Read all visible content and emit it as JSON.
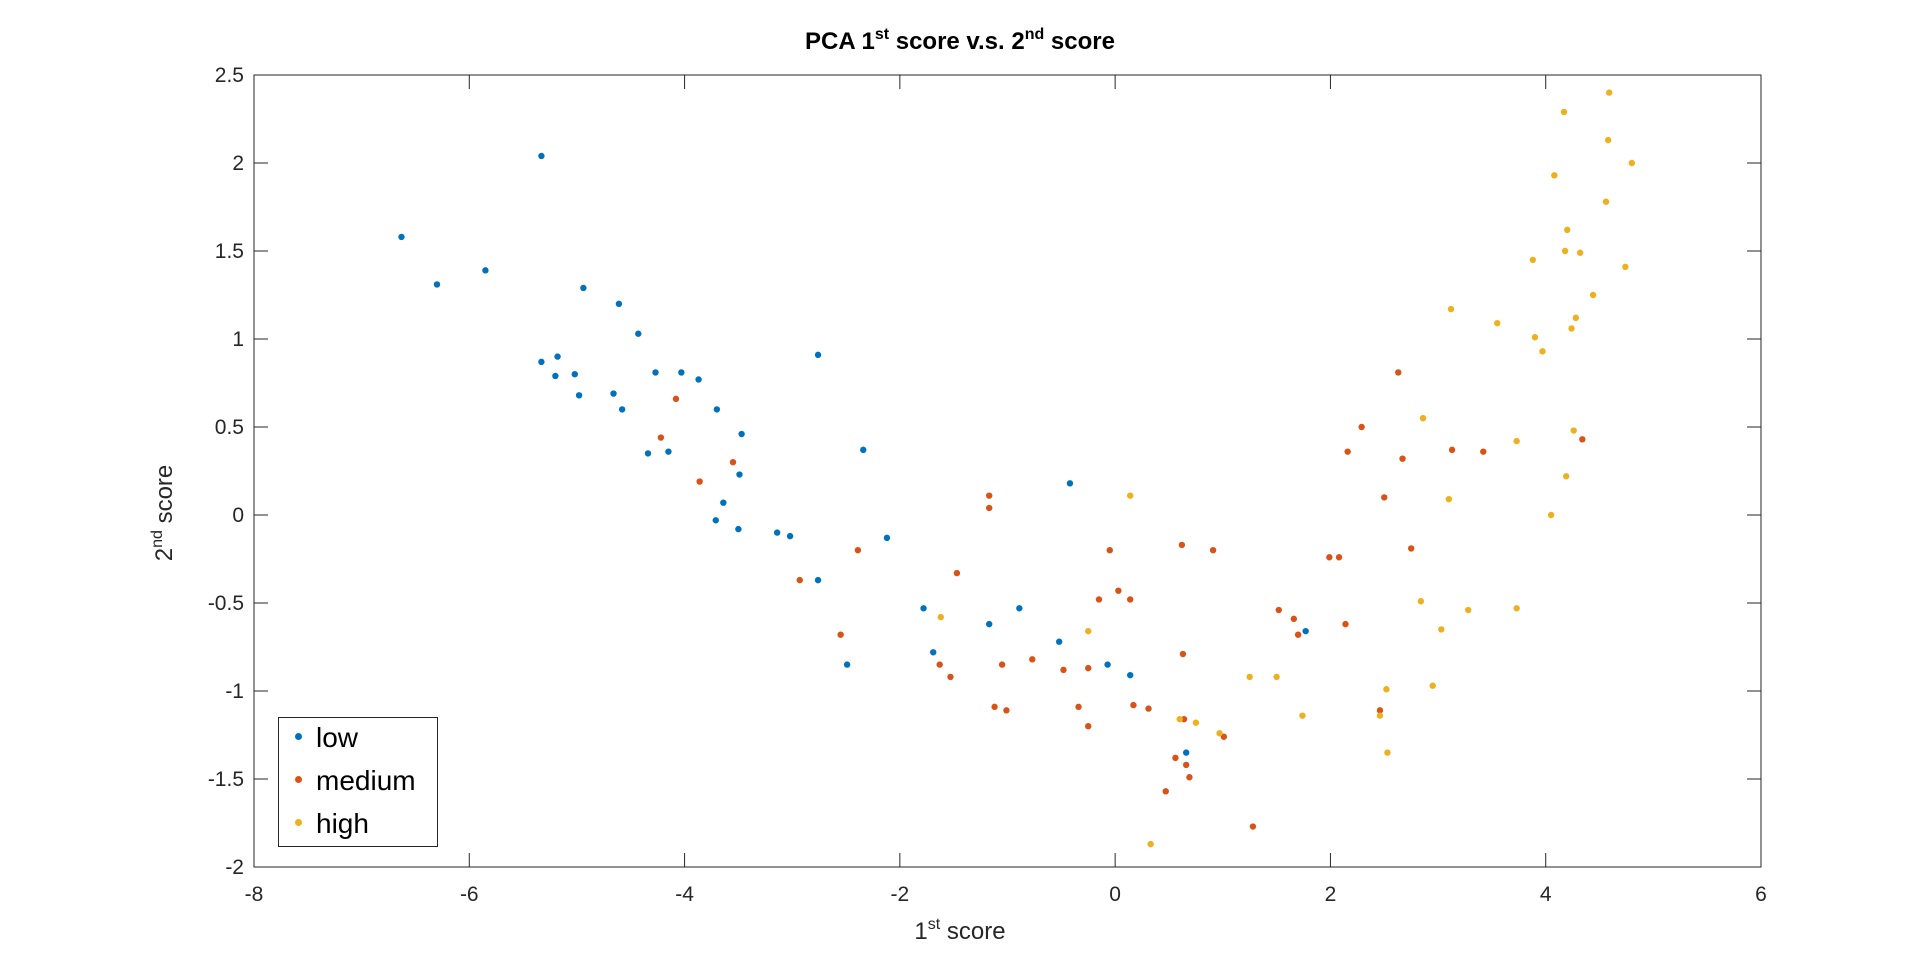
{
  "chart_data": {
    "type": "scatter",
    "title_main": "PCA 1",
    "title_sup1": "st",
    "title_mid": " score v.s. 2",
    "title_sup2": "nd",
    "title_end": " score",
    "xlabel_sup": "st",
    "xlabel_text": " score",
    "xlabel_prefix": "1",
    "ylabel_prefix": "2",
    "ylabel_sup": "nd",
    "ylabel_text": " score",
    "xlim": [
      -8,
      6
    ],
    "ylim": [
      -2,
      2.5
    ],
    "xticks": [
      -8,
      -6,
      -4,
      -2,
      0,
      2,
      4,
      6
    ],
    "yticks": [
      -2,
      -1.5,
      -1,
      -0.5,
      0,
      0.5,
      1,
      1.5,
      2,
      2.5
    ],
    "grid": false,
    "legend_position": "bottom-left",
    "series": [
      {
        "name": "low",
        "color": "#0072BD",
        "points": [
          [
            -6.63,
            1.58
          ],
          [
            -6.3,
            1.31
          ],
          [
            -5.85,
            1.39
          ],
          [
            -5.33,
            2.04
          ],
          [
            -5.33,
            0.87
          ],
          [
            -5.2,
            0.79
          ],
          [
            -5.18,
            0.9
          ],
          [
            -5.02,
            0.8
          ],
          [
            -4.98,
            0.68
          ],
          [
            -4.94,
            1.29
          ],
          [
            -4.66,
            0.69
          ],
          [
            -4.61,
            1.2
          ],
          [
            -4.58,
            0.6
          ],
          [
            -4.43,
            1.03
          ],
          [
            -4.34,
            0.35
          ],
          [
            -4.27,
            0.81
          ],
          [
            -4.15,
            0.36
          ],
          [
            -4.03,
            0.81
          ],
          [
            -3.87,
            0.77
          ],
          [
            -3.71,
            -0.03
          ],
          [
            -3.7,
            0.6
          ],
          [
            -3.64,
            0.07
          ],
          [
            -3.5,
            -0.08
          ],
          [
            -3.49,
            0.23
          ],
          [
            -3.47,
            0.46
          ],
          [
            -3.14,
            -0.1
          ],
          [
            -3.02,
            -0.12
          ],
          [
            -2.76,
            0.91
          ],
          [
            -2.76,
            -0.37
          ],
          [
            -2.49,
            -0.85
          ],
          [
            -2.34,
            0.37
          ],
          [
            -2.12,
            -0.13
          ],
          [
            -1.78,
            -0.53
          ],
          [
            -1.69,
            -0.78
          ],
          [
            -1.17,
            -0.62
          ],
          [
            -0.89,
            -0.53
          ],
          [
            -0.52,
            -0.72
          ],
          [
            -0.42,
            0.18
          ],
          [
            -0.07,
            -0.85
          ],
          [
            0.14,
            -0.91
          ],
          [
            0.66,
            -1.35
          ],
          [
            1.77,
            -0.66
          ]
        ]
      },
      {
        "name": "medium",
        "color": "#D95319",
        "points": [
          [
            -4.22,
            0.44
          ],
          [
            -4.08,
            0.66
          ],
          [
            -3.86,
            0.19
          ],
          [
            -3.55,
            0.3
          ],
          [
            -2.93,
            -0.37
          ],
          [
            -2.39,
            -0.2
          ],
          [
            -2.55,
            -0.68
          ],
          [
            -1.63,
            -0.85
          ],
          [
            -1.53,
            -0.92
          ],
          [
            -1.47,
            -0.33
          ],
          [
            -1.17,
            0.11
          ],
          [
            -1.17,
            0.04
          ],
          [
            -1.12,
            -1.09
          ],
          [
            -1.05,
            -0.85
          ],
          [
            -1.01,
            -1.11
          ],
          [
            -0.77,
            -0.82
          ],
          [
            -0.48,
            -0.88
          ],
          [
            -0.34,
            -1.09
          ],
          [
            -0.25,
            -0.87
          ],
          [
            -0.25,
            -1.2
          ],
          [
            -0.15,
            -0.48
          ],
          [
            -0.05,
            -0.2
          ],
          [
            0.03,
            -0.43
          ],
          [
            0.14,
            -0.48
          ],
          [
            0.17,
            -1.08
          ],
          [
            0.31,
            -1.1
          ],
          [
            0.47,
            -1.57
          ],
          [
            0.56,
            -1.38
          ],
          [
            0.62,
            -0.17
          ],
          [
            0.63,
            -0.79
          ],
          [
            0.64,
            -1.16
          ],
          [
            0.66,
            -1.42
          ],
          [
            0.69,
            -1.49
          ],
          [
            0.91,
            -0.2
          ],
          [
            1.01,
            -1.26
          ],
          [
            1.28,
            -1.77
          ],
          [
            1.52,
            -0.54
          ],
          [
            1.66,
            -0.59
          ],
          [
            1.7,
            -0.68
          ],
          [
            1.99,
            -0.24
          ],
          [
            2.08,
            -0.24
          ],
          [
            2.14,
            -0.62
          ],
          [
            2.16,
            0.36
          ],
          [
            2.29,
            0.5
          ],
          [
            2.46,
            -1.11
          ],
          [
            2.5,
            0.1
          ],
          [
            2.63,
            0.81
          ],
          [
            2.67,
            0.32
          ],
          [
            2.75,
            -0.19
          ],
          [
            3.13,
            0.37
          ],
          [
            3.42,
            0.36
          ],
          [
            4.34,
            0.43
          ]
        ]
      },
      {
        "name": "high",
        "color": "#EDB120",
        "points": [
          [
            -1.62,
            -0.58
          ],
          [
            -0.25,
            -0.66
          ],
          [
            0.14,
            0.11
          ],
          [
            0.33,
            -1.87
          ],
          [
            0.6,
            -1.16
          ],
          [
            0.75,
            -1.18
          ],
          [
            0.97,
            -1.24
          ],
          [
            1.25,
            -0.92
          ],
          [
            1.5,
            -0.92
          ],
          [
            1.74,
            -1.14
          ],
          [
            2.46,
            -1.14
          ],
          [
            2.52,
            -0.99
          ],
          [
            2.53,
            -1.35
          ],
          [
            2.84,
            -0.49
          ],
          [
            2.86,
            0.55
          ],
          [
            2.95,
            -0.97
          ],
          [
            3.03,
            -0.65
          ],
          [
            3.1,
            0.09
          ],
          [
            3.12,
            1.17
          ],
          [
            3.28,
            -0.54
          ],
          [
            3.55,
            1.09
          ],
          [
            3.73,
            0.42
          ],
          [
            3.73,
            -0.53
          ],
          [
            3.88,
            1.45
          ],
          [
            3.9,
            1.01
          ],
          [
            3.97,
            0.93
          ],
          [
            4.05,
            -0.0
          ],
          [
            4.08,
            1.93
          ],
          [
            4.17,
            2.29
          ],
          [
            4.18,
            1.5
          ],
          [
            4.19,
            0.22
          ],
          [
            4.2,
            1.62
          ],
          [
            4.24,
            1.06
          ],
          [
            4.26,
            0.48
          ],
          [
            4.28,
            1.12
          ],
          [
            4.32,
            1.49
          ],
          [
            4.44,
            1.25
          ],
          [
            4.56,
            1.78
          ],
          [
            4.58,
            2.13
          ],
          [
            4.59,
            2.4
          ],
          [
            4.74,
            1.41
          ],
          [
            4.8,
            2.0
          ]
        ]
      }
    ]
  }
}
